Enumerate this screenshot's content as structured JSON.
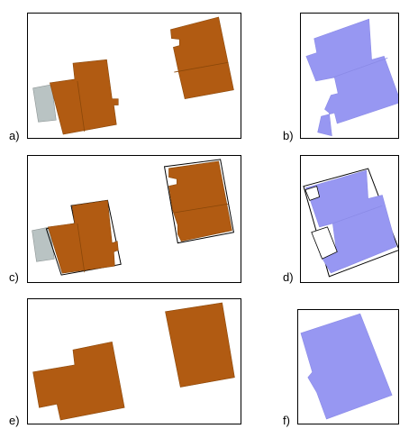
{
  "panels": [
    {
      "id": "a",
      "label": "a)"
    },
    {
      "id": "b",
      "label": "b)"
    },
    {
      "id": "c",
      "label": "c)"
    },
    {
      "id": "d",
      "label": "d)"
    },
    {
      "id": "e",
      "label": "e)"
    },
    {
      "id": "f",
      "label": "f)"
    }
  ],
  "colors": {
    "building_brown": "#b15b12",
    "building_blue": "#9797f2",
    "annex_gray": "#b9c3c3",
    "frame": "#000000"
  }
}
